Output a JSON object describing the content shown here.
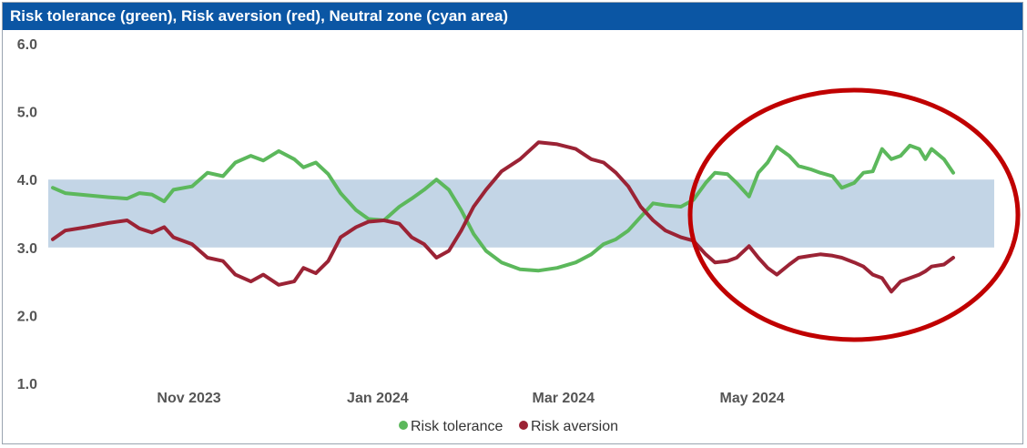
{
  "chart_data": {
    "type": "line",
    "title": "Risk tolerance (green), Risk aversion (red), Neutral zone (cyan area)",
    "x_ticks": [
      "Nov 2023",
      "Jan 2024",
      "Mar 2024",
      "May 2024"
    ],
    "y_ticks": [
      "1.0",
      "2.0",
      "3.0",
      "4.0",
      "5.0",
      "6.0"
    ],
    "ylim": [
      1.0,
      6.0
    ],
    "x_range": [
      "2023-09-18",
      "2024-06-30"
    ],
    "neutral_zone": [
      3.0,
      4.0
    ],
    "legend_position": "bottom-center",
    "grid": false,
    "colors": {
      "tolerance": "#5cb85c",
      "aversion": "#9b2335",
      "zone": "#c3d5e6",
      "circle": "#c00000"
    },
    "series": [
      {
        "name": "Risk tolerance",
        "points": [
          [
            "2023-09-18",
            3.88
          ],
          [
            "2023-09-22",
            3.8
          ],
          [
            "2023-09-29",
            3.77
          ],
          [
            "2023-10-06",
            3.74
          ],
          [
            "2023-10-12",
            3.72
          ],
          [
            "2023-10-16",
            3.8
          ],
          [
            "2023-10-20",
            3.78
          ],
          [
            "2023-10-24",
            3.68
          ],
          [
            "2023-10-27",
            3.85
          ],
          [
            "2023-11-02",
            3.9
          ],
          [
            "2023-11-07",
            4.1
          ],
          [
            "2023-11-12",
            4.05
          ],
          [
            "2023-11-16",
            4.25
          ],
          [
            "2023-11-21",
            4.35
          ],
          [
            "2023-11-25",
            4.28
          ],
          [
            "2023-11-30",
            4.42
          ],
          [
            "2023-12-05",
            4.3
          ],
          [
            "2023-12-08",
            4.18
          ],
          [
            "2023-12-12",
            4.25
          ],
          [
            "2023-12-16",
            4.08
          ],
          [
            "2023-12-20",
            3.8
          ],
          [
            "2023-12-25",
            3.55
          ],
          [
            "2023-12-29",
            3.42
          ],
          [
            "2024-01-03",
            3.4
          ],
          [
            "2024-01-08",
            3.6
          ],
          [
            "2024-01-12",
            3.72
          ],
          [
            "2024-01-16",
            3.85
          ],
          [
            "2024-01-20",
            4.0
          ],
          [
            "2024-01-24",
            3.85
          ],
          [
            "2024-01-28",
            3.55
          ],
          [
            "2024-02-01",
            3.2
          ],
          [
            "2024-02-05",
            2.95
          ],
          [
            "2024-02-10",
            2.78
          ],
          [
            "2024-02-16",
            2.68
          ],
          [
            "2024-02-22",
            2.66
          ],
          [
            "2024-02-28",
            2.7
          ],
          [
            "2024-03-05",
            2.78
          ],
          [
            "2024-03-10",
            2.9
          ],
          [
            "2024-03-14",
            3.05
          ],
          [
            "2024-03-18",
            3.12
          ],
          [
            "2024-03-22",
            3.25
          ],
          [
            "2024-03-26",
            3.45
          ],
          [
            "2024-03-30",
            3.65
          ],
          [
            "2024-04-03",
            3.62
          ],
          [
            "2024-04-08",
            3.6
          ],
          [
            "2024-04-12",
            3.7
          ],
          [
            "2024-04-16",
            3.95
          ],
          [
            "2024-04-19",
            4.1
          ],
          [
            "2024-04-23",
            4.08
          ],
          [
            "2024-04-26",
            3.95
          ],
          [
            "2024-04-30",
            3.75
          ],
          [
            "2024-05-03",
            4.1
          ],
          [
            "2024-05-06",
            4.25
          ],
          [
            "2024-05-09",
            4.48
          ],
          [
            "2024-05-13",
            4.35
          ],
          [
            "2024-05-16",
            4.2
          ],
          [
            "2024-05-20",
            4.15
          ],
          [
            "2024-05-23",
            4.1
          ],
          [
            "2024-05-27",
            4.05
          ],
          [
            "2024-05-30",
            3.88
          ],
          [
            "2024-06-03",
            3.95
          ],
          [
            "2024-06-06",
            4.1
          ],
          [
            "2024-06-09",
            4.12
          ],
          [
            "2024-06-12",
            4.45
          ],
          [
            "2024-06-15",
            4.3
          ],
          [
            "2024-06-18",
            4.35
          ],
          [
            "2024-06-21",
            4.5
          ],
          [
            "2024-06-24",
            4.45
          ],
          [
            "2024-06-26",
            4.3
          ],
          [
            "2024-06-28",
            4.45
          ],
          [
            "2024-07-02",
            4.3
          ],
          [
            "2024-07-05",
            4.1
          ]
        ]
      },
      {
        "name": "Risk aversion",
        "points": [
          [
            "2023-09-18",
            3.12
          ],
          [
            "2023-09-22",
            3.25
          ],
          [
            "2023-09-29",
            3.3
          ],
          [
            "2023-10-06",
            3.36
          ],
          [
            "2023-10-12",
            3.4
          ],
          [
            "2023-10-16",
            3.28
          ],
          [
            "2023-10-20",
            3.22
          ],
          [
            "2023-10-24",
            3.3
          ],
          [
            "2023-10-27",
            3.15
          ],
          [
            "2023-11-02",
            3.05
          ],
          [
            "2023-11-07",
            2.85
          ],
          [
            "2023-11-12",
            2.8
          ],
          [
            "2023-11-16",
            2.6
          ],
          [
            "2023-11-21",
            2.5
          ],
          [
            "2023-11-25",
            2.6
          ],
          [
            "2023-11-30",
            2.45
          ],
          [
            "2023-12-05",
            2.5
          ],
          [
            "2023-12-08",
            2.7
          ],
          [
            "2023-12-12",
            2.62
          ],
          [
            "2023-12-16",
            2.8
          ],
          [
            "2023-12-20",
            3.15
          ],
          [
            "2023-12-25",
            3.3
          ],
          [
            "2023-12-29",
            3.38
          ],
          [
            "2024-01-03",
            3.4
          ],
          [
            "2024-01-08",
            3.35
          ],
          [
            "2024-01-12",
            3.15
          ],
          [
            "2024-01-16",
            3.05
          ],
          [
            "2024-01-20",
            2.85
          ],
          [
            "2024-01-24",
            2.95
          ],
          [
            "2024-01-28",
            3.25
          ],
          [
            "2024-02-01",
            3.6
          ],
          [
            "2024-02-05",
            3.85
          ],
          [
            "2024-02-10",
            4.12
          ],
          [
            "2024-02-16",
            4.3
          ],
          [
            "2024-02-22",
            4.55
          ],
          [
            "2024-02-28",
            4.52
          ],
          [
            "2024-03-05",
            4.45
          ],
          [
            "2024-03-10",
            4.3
          ],
          [
            "2024-03-14",
            4.25
          ],
          [
            "2024-03-18",
            4.1
          ],
          [
            "2024-03-22",
            3.9
          ],
          [
            "2024-03-26",
            3.6
          ],
          [
            "2024-03-30",
            3.4
          ],
          [
            "2024-04-03",
            3.25
          ],
          [
            "2024-04-08",
            3.15
          ],
          [
            "2024-04-12",
            3.1
          ],
          [
            "2024-04-16",
            2.9
          ],
          [
            "2024-04-19",
            2.78
          ],
          [
            "2024-04-23",
            2.8
          ],
          [
            "2024-04-26",
            2.85
          ],
          [
            "2024-04-30",
            3.02
          ],
          [
            "2024-05-03",
            2.85
          ],
          [
            "2024-05-06",
            2.7
          ],
          [
            "2024-05-09",
            2.6
          ],
          [
            "2024-05-13",
            2.75
          ],
          [
            "2024-05-16",
            2.85
          ],
          [
            "2024-05-20",
            2.88
          ],
          [
            "2024-05-23",
            2.9
          ],
          [
            "2024-05-27",
            2.88
          ],
          [
            "2024-05-30",
            2.85
          ],
          [
            "2024-06-03",
            2.78
          ],
          [
            "2024-06-06",
            2.72
          ],
          [
            "2024-06-09",
            2.6
          ],
          [
            "2024-06-12",
            2.55
          ],
          [
            "2024-06-15",
            2.35
          ],
          [
            "2024-06-18",
            2.5
          ],
          [
            "2024-06-21",
            2.55
          ],
          [
            "2024-06-24",
            2.6
          ],
          [
            "2024-06-26",
            2.65
          ],
          [
            "2024-06-28",
            2.72
          ],
          [
            "2024-07-02",
            2.75
          ],
          [
            "2024-07-05",
            2.85
          ]
        ]
      }
    ]
  }
}
